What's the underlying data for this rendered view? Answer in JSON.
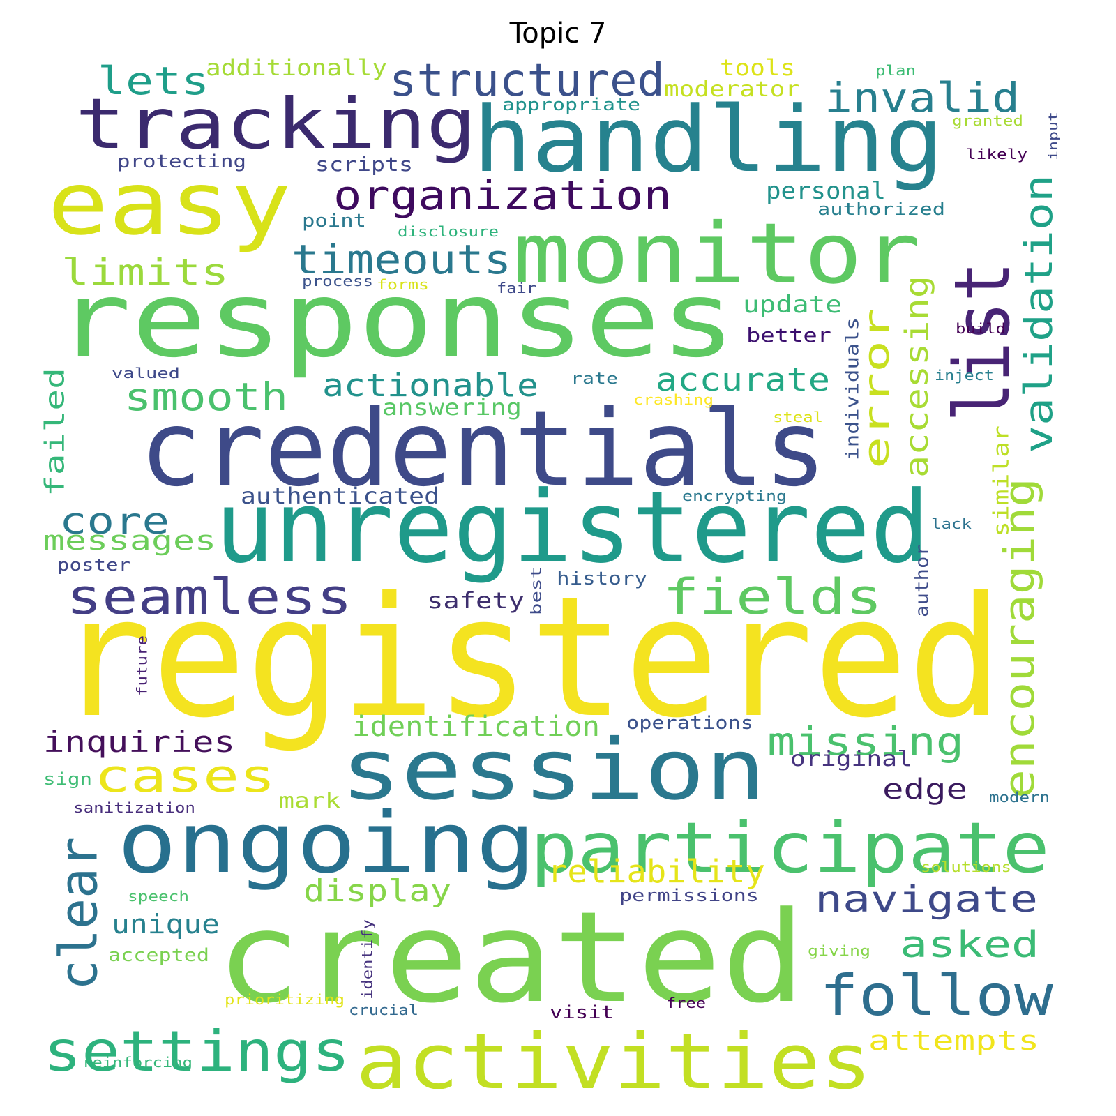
{
  "title": "Topic 7",
  "words": [
    {
      "text": "registered",
      "color": "#f4e320"
    },
    {
      "text": "credentials",
      "color": "#3e4a88"
    },
    {
      "text": "responses",
      "color": "#5ec962"
    },
    {
      "text": "unregistered",
      "color": "#1f9a8a"
    },
    {
      "text": "handling",
      "color": "#26828e"
    },
    {
      "text": "created",
      "color": "#7ad151"
    },
    {
      "text": "session",
      "color": "#2a788e"
    },
    {
      "text": "monitor",
      "color": "#5ec962"
    },
    {
      "text": "tracking",
      "color": "#3b2a6e"
    },
    {
      "text": "ongoing",
      "color": "#27708e"
    },
    {
      "text": "easy",
      "color": "#d8e219"
    },
    {
      "text": "activities",
      "color": "#c2df23"
    },
    {
      "text": "participate",
      "color": "#4ac16d"
    },
    {
      "text": "list",
      "color": "#482475"
    },
    {
      "text": "settings",
      "color": "#2db27d"
    },
    {
      "text": "follow",
      "color": "#2e6e8e"
    },
    {
      "text": "seamless",
      "color": "#433e85"
    },
    {
      "text": "fields",
      "color": "#5ec962"
    },
    {
      "text": "clear",
      "color": "#2c728e"
    },
    {
      "text": "structured",
      "color": "#3b518b"
    },
    {
      "text": "cases",
      "color": "#ece51b"
    },
    {
      "text": "organization",
      "color": "#3e0a5e"
    },
    {
      "text": "invalid",
      "color": "#277f8e"
    },
    {
      "text": "encouraging",
      "color": "#a0da39"
    },
    {
      "text": "validation",
      "color": "#1fa187"
    },
    {
      "text": "timeouts",
      "color": "#2a788e"
    },
    {
      "text": "navigate",
      "color": "#3e4989"
    },
    {
      "text": "missing",
      "color": "#4ac16d"
    },
    {
      "text": "smooth",
      "color": "#4ac16d"
    },
    {
      "text": "error",
      "color": "#c8e020"
    },
    {
      "text": "limits",
      "color": "#9bd93c"
    },
    {
      "text": "lets",
      "color": "#1f9e89"
    },
    {
      "text": "accurate",
      "color": "#22a884"
    },
    {
      "text": "asked",
      "color": "#3bbb75"
    },
    {
      "text": "actionable",
      "color": "#22928c"
    },
    {
      "text": "core",
      "color": "#2a788e"
    },
    {
      "text": "accessing",
      "color": "#a8db34"
    },
    {
      "text": "reliability",
      "color": "#e5e419"
    },
    {
      "text": "identification",
      "color": "#70cf57"
    },
    {
      "text": "inquiries",
      "color": "#440f5a"
    },
    {
      "text": "display",
      "color": "#86d549"
    },
    {
      "text": "failed",
      "color": "#35b779"
    },
    {
      "text": "messages",
      "color": "#6ccd5a"
    },
    {
      "text": "edge",
      "color": "#3a1a5e"
    },
    {
      "text": "attempts",
      "color": "#f1e51d"
    },
    {
      "text": "unique",
      "color": "#26818e"
    },
    {
      "text": "personal",
      "color": "#22928c"
    },
    {
      "text": "update",
      "color": "#3dbc74"
    },
    {
      "text": "answering",
      "color": "#58c765"
    },
    {
      "text": "authenticated",
      "color": "#3b528b"
    },
    {
      "text": "safety",
      "color": "#3e2f6e"
    },
    {
      "text": "scripts",
      "color": "#3f4788"
    },
    {
      "text": "additionally",
      "color": "#a5db36"
    },
    {
      "text": "tools",
      "color": "#dde318"
    },
    {
      "text": "moderator",
      "color": "#c5e021"
    },
    {
      "text": "similar",
      "color": "#bddf26"
    },
    {
      "text": "original",
      "color": "#46337e"
    },
    {
      "text": "mark",
      "color": "#aadc32"
    },
    {
      "text": "individuals",
      "color": "#3b528b"
    },
    {
      "text": "better",
      "color": "#3b0f6e"
    },
    {
      "text": "protecting",
      "color": "#404688"
    },
    {
      "text": "authorized",
      "color": "#277f8e"
    },
    {
      "text": "appropriate",
      "color": "#20928c"
    },
    {
      "text": "history",
      "color": "#365c8d"
    },
    {
      "text": "operations",
      "color": "#3b528b"
    },
    {
      "text": "permissions",
      "color": "#414487"
    },
    {
      "text": "accepted",
      "color": "#7ad151"
    },
    {
      "text": "point",
      "color": "#2a788e"
    },
    {
      "text": "visit",
      "color": "#440154"
    },
    {
      "text": "poster",
      "color": "#3f4788"
    },
    {
      "text": "author",
      "color": "#3e4c8a"
    },
    {
      "text": "sign",
      "color": "#3dbc74"
    },
    {
      "text": "prioritizing",
      "color": "#e2e418"
    },
    {
      "text": "sanitization",
      "color": "#472d7b"
    },
    {
      "text": "encrypting",
      "color": "#2a788e"
    },
    {
      "text": "crucial",
      "color": "#31688e"
    },
    {
      "text": "process",
      "color": "#3b528b"
    },
    {
      "text": "identify",
      "color": "#46337e"
    },
    {
      "text": "future",
      "color": "#482173"
    },
    {
      "text": "speech",
      "color": "#4ac16d"
    },
    {
      "text": "forms",
      "color": "#d8e219"
    },
    {
      "text": "reinforcing",
      "color": "#35b779"
    },
    {
      "text": "giving",
      "color": "#86d549"
    },
    {
      "text": "fair",
      "color": "#3e4989"
    },
    {
      "text": "valued",
      "color": "#3e4989"
    },
    {
      "text": "disclosure",
      "color": "#2eb37c"
    },
    {
      "text": "solutions",
      "color": "#b5de2b"
    },
    {
      "text": "rate",
      "color": "#2a788e"
    },
    {
      "text": "best",
      "color": "#3e4c8a"
    },
    {
      "text": "crashing",
      "color": "#fde725"
    },
    {
      "text": "steal",
      "color": "#dde318"
    },
    {
      "text": "build",
      "color": "#440154"
    },
    {
      "text": "inject",
      "color": "#277f8e"
    },
    {
      "text": "lack",
      "color": "#2c728e"
    },
    {
      "text": "modern",
      "color": "#2c728e"
    },
    {
      "text": "free",
      "color": "#440154"
    },
    {
      "text": "plan",
      "color": "#3dbc74"
    },
    {
      "text": "granted",
      "color": "#a8db34"
    },
    {
      "text": "likely",
      "color": "#440154"
    },
    {
      "text": "input",
      "color": "#3e4989"
    }
  ]
}
